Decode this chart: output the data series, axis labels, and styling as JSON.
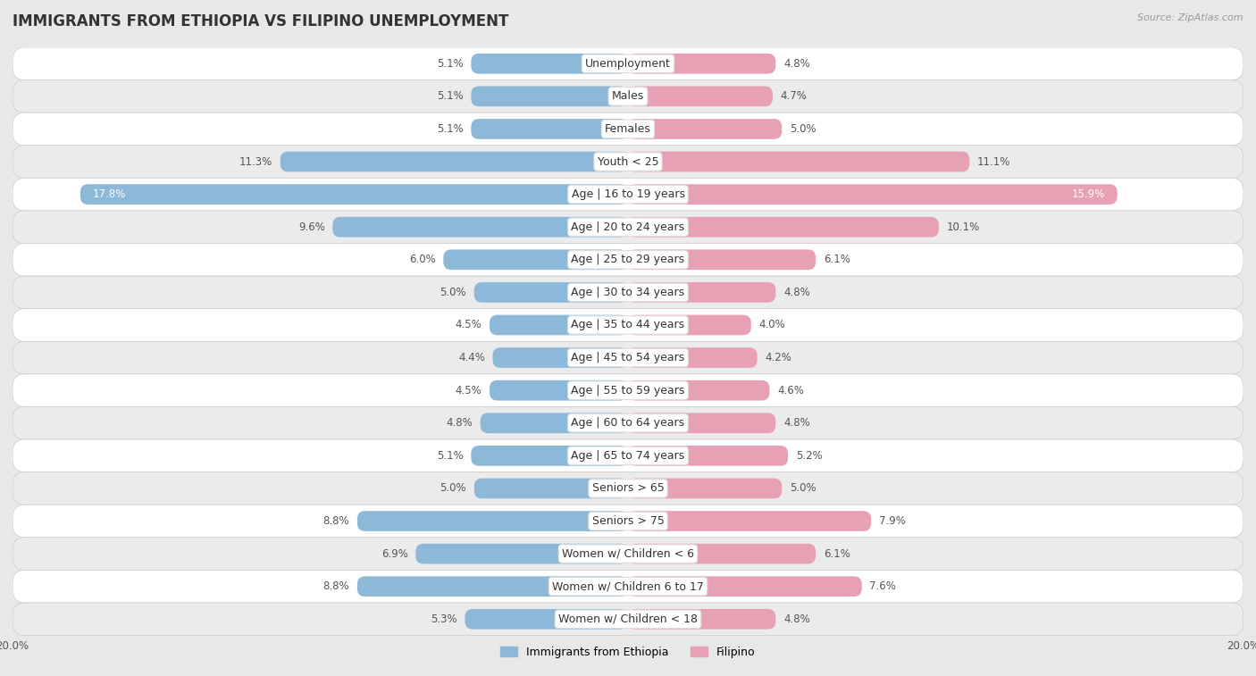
{
  "title": "IMMIGRANTS FROM ETHIOPIA VS FILIPINO UNEMPLOYMENT",
  "source": "Source: ZipAtlas.com",
  "categories": [
    "Unemployment",
    "Males",
    "Females",
    "Youth < 25",
    "Age | 16 to 19 years",
    "Age | 20 to 24 years",
    "Age | 25 to 29 years",
    "Age | 30 to 34 years",
    "Age | 35 to 44 years",
    "Age | 45 to 54 years",
    "Age | 55 to 59 years",
    "Age | 60 to 64 years",
    "Age | 65 to 74 years",
    "Seniors > 65",
    "Seniors > 75",
    "Women w/ Children < 6",
    "Women w/ Children 6 to 17",
    "Women w/ Children < 18"
  ],
  "ethiopia_values": [
    5.1,
    5.1,
    5.1,
    11.3,
    17.8,
    9.6,
    6.0,
    5.0,
    4.5,
    4.4,
    4.5,
    4.8,
    5.1,
    5.0,
    8.8,
    6.9,
    8.8,
    5.3
  ],
  "filipino_values": [
    4.8,
    4.7,
    5.0,
    11.1,
    15.9,
    10.1,
    6.1,
    4.8,
    4.0,
    4.2,
    4.6,
    4.8,
    5.2,
    5.0,
    7.9,
    6.1,
    7.6,
    4.8
  ],
  "ethiopia_color": "#8db8d8",
  "filipino_color": "#e8a0b4",
  "ethiopia_highlight_color": "#6b9fc0",
  "filipino_highlight_color": "#d97090",
  "background_color": "#e8e8e8",
  "row_color_light": "#ffffff",
  "row_color_dark": "#ebebeb",
  "xlim": 20.0,
  "bar_height": 0.62,
  "legend_ethiopia": "Immigrants from Ethiopia",
  "legend_filipino": "Filipino",
  "title_fontsize": 12,
  "label_fontsize": 9,
  "value_fontsize": 8.5
}
